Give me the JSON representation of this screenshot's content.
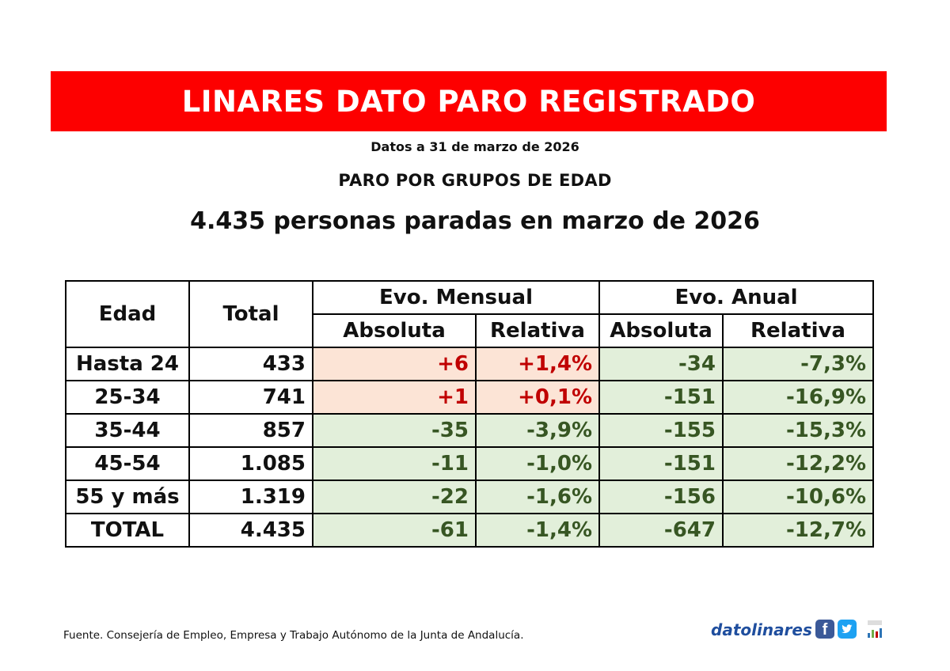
{
  "banner": {
    "title": "LINARES DATO PARO REGISTRADO"
  },
  "date_line": "Datos a 31 de marzo de 2026",
  "section_title": "PARO POR GRUPOS DE EDAD",
  "headline": "4.435 personas paradas en marzo de 2026",
  "table": {
    "headers": {
      "edad": "Edad",
      "total": "Total",
      "evo_mensual": "Evo. Mensual",
      "evo_anual": "Evo. Anual",
      "absoluta": "Absoluta",
      "relativa": "Relativa"
    },
    "rows": [
      {
        "edad": "Hasta 24",
        "total": "433",
        "mens_abs": "+6",
        "mens_rel": "+1,4%",
        "anual_abs": "-34",
        "anual_rel": "-7,3%"
      },
      {
        "edad": "25-34",
        "total": "741",
        "mens_abs": "+1",
        "mens_rel": "+0,1%",
        "anual_abs": "-151",
        "anual_rel": "-16,9%"
      },
      {
        "edad": "35-44",
        "total": "857",
        "mens_abs": "-35",
        "mens_rel": "-3,9%",
        "anual_abs": "-155",
        "anual_rel": "-15,3%"
      },
      {
        "edad": "45-54",
        "total": "1.085",
        "mens_abs": "-11",
        "mens_rel": "-1,0%",
        "anual_abs": "-151",
        "anual_rel": "-12,2%"
      },
      {
        "edad": "55 y más",
        "total": "1.319",
        "mens_abs": "-22",
        "mens_rel": "-1,6%",
        "anual_abs": "-156",
        "anual_rel": "-10,6%"
      },
      {
        "edad": "TOTAL",
        "total": "4.435",
        "mens_abs": "-61",
        "mens_rel": "-1,4%",
        "anual_abs": "-647",
        "anual_rel": "-12,7%"
      }
    ]
  },
  "colors": {
    "banner_red": "#fd0000",
    "increase_bg": "#fce4d6",
    "increase_text": "#c00000",
    "decrease_bg": "#e2efda",
    "decrease_text": "#375623"
  },
  "source": "Fuente. Consejería de Empleo, Empresa y Trabajo Autónomo de la Junta de Andalucía.",
  "brand": {
    "name": "datolinares",
    "icons": [
      "facebook-icon",
      "twitter-icon",
      "datolinares-logo"
    ]
  }
}
